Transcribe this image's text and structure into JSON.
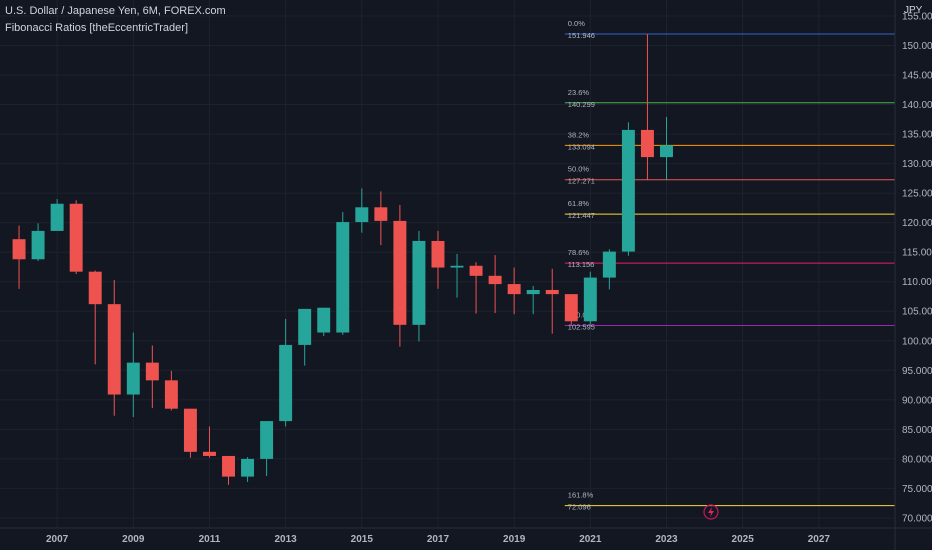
{
  "header": {
    "title": "U.S. Dollar / Japanese Yen, 6M, FOREX.com",
    "indicator": "Fibonacci Ratios [theEccentricTrader]"
  },
  "currency": "JPY",
  "colors": {
    "background": "#131722",
    "grid": "#1e222d",
    "bull": "#26a69a",
    "bear": "#ef5350",
    "axis_text": "#b2b5be"
  },
  "chart_data": {
    "type": "candlestick",
    "timeframe": "6M",
    "x_ticks": [
      "2007",
      "2009",
      "2011",
      "2013",
      "2015",
      "2017",
      "2019",
      "2021",
      "2023",
      "2025",
      "2027"
    ],
    "x_range": [
      2005.5,
      2029.0
    ],
    "y_ticks": [
      "70.000",
      "75.000",
      "80.000",
      "85.000",
      "90.000",
      "95.000",
      "100.000",
      "105.000",
      "110.000",
      "115.000",
      "120.000",
      "125.000",
      "130.000",
      "135.000",
      "140.000",
      "145.000",
      "150.000",
      "155.000"
    ],
    "y_range": [
      68.3,
      157.7
    ],
    "candles": [
      {
        "t": 2006.0,
        "o": 117.2,
        "h": 119.5,
        "l": 108.8,
        "c": 113.8
      },
      {
        "t": 2006.5,
        "o": 113.8,
        "h": 119.9,
        "l": 113.5,
        "c": 118.6
      },
      {
        "t": 2007.0,
        "o": 118.6,
        "h": 124.0,
        "l": 118.6,
        "c": 123.2
      },
      {
        "t": 2007.5,
        "o": 123.2,
        "h": 123.8,
        "l": 111.3,
        "c": 111.7
      },
      {
        "t": 2008.0,
        "o": 111.7,
        "h": 111.9,
        "l": 96.0,
        "c": 106.2
      },
      {
        "t": 2008.5,
        "o": 106.2,
        "h": 110.3,
        "l": 87.3,
        "c": 90.9
      },
      {
        "t": 2009.0,
        "o": 90.9,
        "h": 101.4,
        "l": 87.1,
        "c": 96.3
      },
      {
        "t": 2009.5,
        "o": 96.3,
        "h": 99.2,
        "l": 88.6,
        "c": 93.3
      },
      {
        "t": 2010.0,
        "o": 93.3,
        "h": 94.9,
        "l": 88.2,
        "c": 88.5
      },
      {
        "t": 2010.5,
        "o": 88.5,
        "h": 88.5,
        "l": 80.2,
        "c": 81.2
      },
      {
        "t": 2011.0,
        "o": 81.2,
        "h": 85.5,
        "l": 80.2,
        "c": 80.5
      },
      {
        "t": 2011.5,
        "o": 80.5,
        "h": 80.5,
        "l": 75.6,
        "c": 77.0
      },
      {
        "t": 2012.0,
        "o": 77.0,
        "h": 80.3,
        "l": 76.1,
        "c": 80.0
      },
      {
        "t": 2012.5,
        "o": 80.0,
        "h": 86.4,
        "l": 77.1,
        "c": 86.4
      },
      {
        "t": 2013.0,
        "o": 86.4,
        "h": 103.7,
        "l": 85.5,
        "c": 99.3
      },
      {
        "t": 2013.5,
        "o": 99.3,
        "h": 105.3,
        "l": 95.8,
        "c": 105.4
      },
      {
        "t": 2014.0,
        "o": 101.4,
        "h": 105.5,
        "l": 100.8,
        "c": 105.6
      },
      {
        "t": 2014.5,
        "o": 101.4,
        "h": 121.8,
        "l": 101.0,
        "c": 120.1
      },
      {
        "t": 2015.0,
        "o": 120.1,
        "h": 125.8,
        "l": 118.3,
        "c": 122.6
      },
      {
        "t": 2015.5,
        "o": 122.6,
        "h": 125.3,
        "l": 116.2,
        "c": 120.3
      },
      {
        "t": 2016.0,
        "o": 120.3,
        "h": 123.0,
        "l": 99.0,
        "c": 102.7
      },
      {
        "t": 2016.5,
        "o": 102.7,
        "h": 118.6,
        "l": 99.9,
        "c": 116.9
      },
      {
        "t": 2017.0,
        "o": 116.9,
        "h": 118.6,
        "l": 108.8,
        "c": 112.4
      },
      {
        "t": 2017.5,
        "o": 112.4,
        "h": 114.7,
        "l": 107.3,
        "c": 112.7
      },
      {
        "t": 2018.0,
        "o": 112.7,
        "h": 113.3,
        "l": 104.6,
        "c": 111.0
      },
      {
        "t": 2018.5,
        "o": 111.0,
        "h": 114.5,
        "l": 104.7,
        "c": 109.6
      },
      {
        "t": 2019.0,
        "o": 109.6,
        "h": 112.4,
        "l": 104.5,
        "c": 107.9
      },
      {
        "t": 2019.5,
        "o": 107.9,
        "h": 109.3,
        "l": 104.5,
        "c": 108.6
      },
      {
        "t": 2020.0,
        "o": 108.6,
        "h": 112.2,
        "l": 101.2,
        "c": 107.9
      },
      {
        "t": 2020.5,
        "o": 107.9,
        "h": 107.8,
        "l": 102.6,
        "c": 103.3
      },
      {
        "t": 2021.0,
        "o": 103.3,
        "h": 111.7,
        "l": 102.6,
        "c": 110.7
      },
      {
        "t": 2021.5,
        "o": 110.7,
        "h": 115.5,
        "l": 108.7,
        "c": 115.1
      },
      {
        "t": 2022.0,
        "o": 115.1,
        "h": 137.0,
        "l": 114.4,
        "c": 135.7
      },
      {
        "t": 2022.5,
        "o": 135.7,
        "h": 151.9,
        "l": 127.2,
        "c": 131.1
      },
      {
        "t": 2023.0,
        "o": 131.1,
        "h": 137.9,
        "l": 127.2,
        "c": 133.1
      }
    ],
    "fib_levels": [
      {
        "ratio": "0.0%",
        "price": "151.946",
        "value": 151.946,
        "color": "#3366cc"
      },
      {
        "ratio": "23.6%",
        "price": "140.299",
        "value": 140.299,
        "color": "#4caf50"
      },
      {
        "ratio": "38.2%",
        "price": "133.094",
        "value": 133.094,
        "color": "#ff9800"
      },
      {
        "ratio": "50.0%",
        "price": "127.271",
        "value": 127.271,
        "color": "#ef5350"
      },
      {
        "ratio": "61.8%",
        "price": "121.447",
        "value": 121.447,
        "color": "#fdd835"
      },
      {
        "ratio": "78.6%",
        "price": "113.156",
        "value": 113.156,
        "color": "#e91e63"
      },
      {
        "ratio": "100.0%",
        "price": "102.595",
        "value": 102.595,
        "color": "#9c27b0"
      },
      {
        "ratio": "161.8%",
        "price": "72.096",
        "value": 72.096,
        "color": "#fdd835"
      }
    ]
  }
}
